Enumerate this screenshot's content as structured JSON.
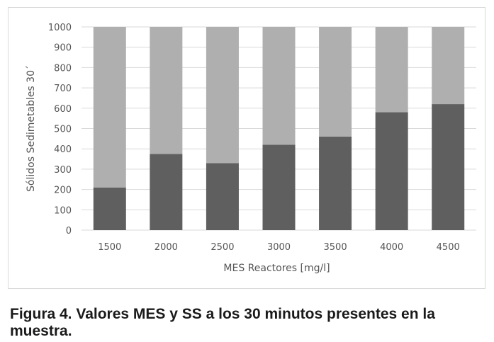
{
  "chart_data": {
    "type": "bar",
    "stacked": true,
    "categories": [
      "1500",
      "2000",
      "2500",
      "3000",
      "3500",
      "4000",
      "4500"
    ],
    "series": [
      {
        "values": [
          210,
          375,
          330,
          420,
          460,
          580,
          620
        ],
        "color": "#5f5f5f"
      },
      {
        "values": [
          790,
          625,
          670,
          580,
          540,
          420,
          380
        ],
        "color": "#afafaf"
      }
    ],
    "title": "",
    "xlabel": "MES Reactores [mg/l]",
    "ylabel": "Sólidos Sedimetables 30´",
    "ylim": [
      0,
      1000
    ],
    "yticks": [
      0,
      100,
      200,
      300,
      400,
      500,
      600,
      700,
      800,
      900,
      1000
    ],
    "grid": true,
    "grid_color": "#d9d9d9",
    "legend": "none"
  },
  "caption": "Figura 4. Valores MES y SS a los 30 minutos presentes en la muestra."
}
